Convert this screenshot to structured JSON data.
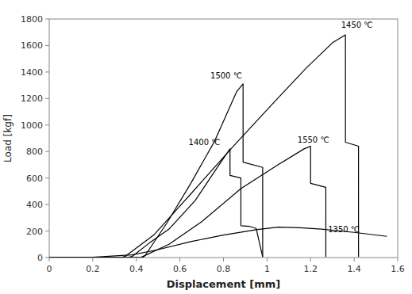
{
  "chart_data": {
    "type": "line",
    "xlabel": "Displacement [mm]",
    "ylabel": "Load [kgf]",
    "xlim": [
      0.0,
      1.6
    ],
    "ylim": [
      0,
      1800
    ],
    "xticks": [
      0.0,
      0.2,
      0.4,
      0.6,
      0.8,
      1.0,
      1.2,
      1.4,
      1.6
    ],
    "yticks": [
      0,
      200,
      400,
      600,
      800,
      1000,
      1200,
      1400,
      1600,
      1800
    ],
    "color": "#000000",
    "grid": false,
    "series": [
      {
        "x": [
          0.0,
          0.18,
          0.2,
          0.38,
          0.5,
          0.65,
          0.8,
          0.95,
          1.05,
          1.15,
          1.25,
          1.4,
          1.55
        ],
        "values": [
          0,
          0,
          3,
          20,
          60,
          120,
          170,
          210,
          230,
          225,
          215,
          190,
          160
        ]
      },
      {
        "x": [
          0.0,
          0.36,
          0.38,
          0.46,
          0.55,
          0.67,
          0.78,
          0.83,
          0.8301,
          0.88,
          0.8801,
          0.92,
          0.95,
          0.98
        ],
        "values": [
          0,
          0,
          8,
          110,
          215,
          430,
          700,
          820,
          620,
          600,
          240,
          235,
          220,
          5
        ]
      },
      {
        "x": [
          0.0,
          0.43,
          0.44,
          0.54,
          0.65,
          0.76,
          0.86,
          0.89,
          0.8901,
          0.98,
          0.9801
        ],
        "values": [
          0,
          0,
          15,
          260,
          560,
          880,
          1250,
          1310,
          720,
          680,
          5
        ]
      },
      {
        "x": [
          0.0,
          0.42,
          0.43,
          0.55,
          0.7,
          0.88,
          1.05,
          1.17,
          1.2,
          1.2001,
          1.27,
          1.2701
        ],
        "values": [
          0,
          0,
          8,
          100,
          270,
          520,
          700,
          820,
          840,
          560,
          530,
          5
        ]
      },
      {
        "x": [
          0.0,
          0.33,
          0.35,
          0.48,
          0.65,
          0.84,
          1.02,
          1.18,
          1.3,
          1.36,
          1.3601,
          1.42,
          1.4201
        ],
        "values": [
          0,
          0,
          10,
          170,
          480,
          830,
          1150,
          1430,
          1620,
          1680,
          870,
          840,
          5
        ]
      }
    ],
    "annotations": [
      {
        "text": "1350 ℃",
        "x": 1.28,
        "y": 178
      },
      {
        "text": "1400 ℃",
        "x": 0.64,
        "y": 840
      },
      {
        "text": "1500 ℃",
        "x": 0.74,
        "y": 1340
      },
      {
        "text": "1550 ℃",
        "x": 1.14,
        "y": 855
      },
      {
        "text": "1450 ℃",
        "x": 1.34,
        "y": 1720
      }
    ]
  }
}
